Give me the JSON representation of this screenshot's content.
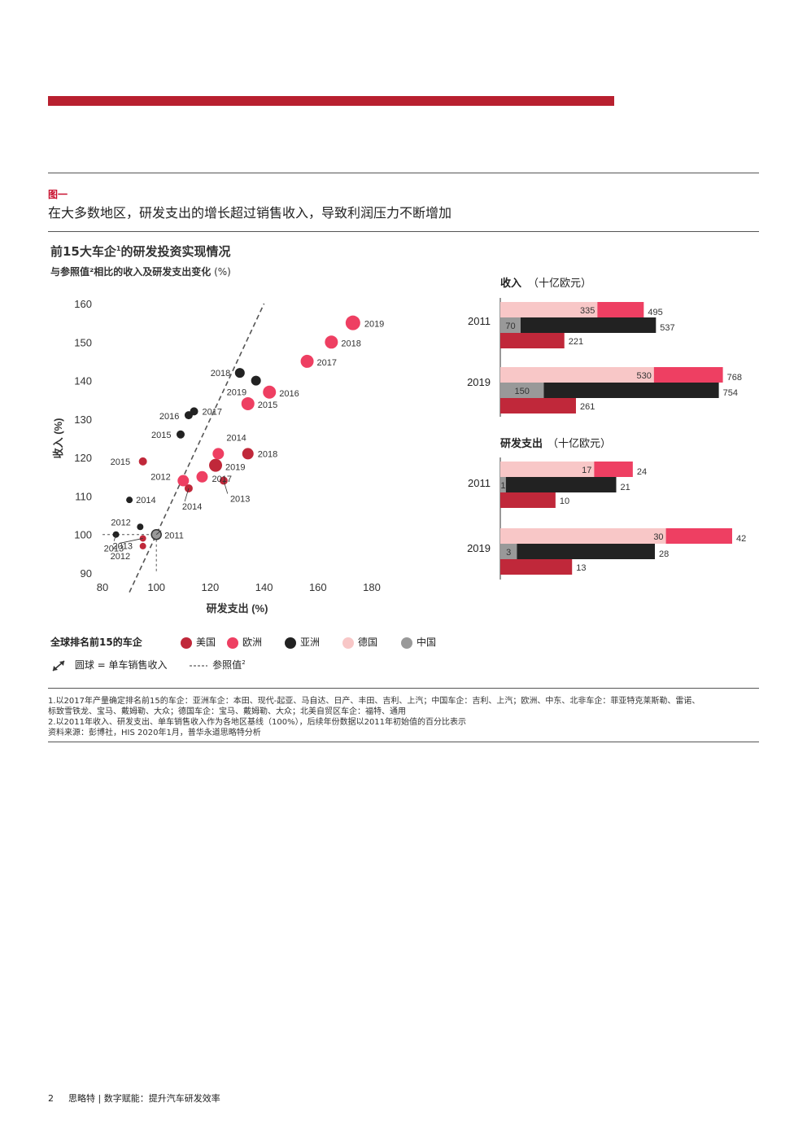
{
  "figure_label": "图一",
  "figure_title": "在大多数地区，研发支出的增长超过销售收入，导致利润压力不断增加",
  "chart_title_main": "前15大车企",
  "chart_title_sup": "1",
  "chart_title_rest": "的研发投资实现情况",
  "chart_subtitle_main": "与参照值²相比的收入及研发支出变化",
  "chart_subtitle_unit": " (%)",
  "colors": {
    "us": "#c0283a",
    "europe": "#ee3f62",
    "asia": "#222222",
    "germany": "#f8c7c7",
    "china": "#999999",
    "brand": "#b8202f"
  },
  "chart_data": [
    {
      "type": "scatter",
      "xlabel": "研发支出 (%)",
      "ylabel": "收入 (%)",
      "xlim": [
        80,
        180
      ],
      "ylim": [
        90,
        160
      ],
      "xticks": [
        "80",
        "100",
        "120",
        "140",
        "160",
        "180"
      ],
      "yticks": [
        "90",
        "100",
        "110",
        "120",
        "130",
        "140",
        "150",
        "160"
      ],
      "reference_line": [
        [
          90,
          85
        ],
        [
          140,
          160
        ]
      ],
      "reference_point": [
        100,
        100
      ],
      "series": [
        {
          "group": "us",
          "points": [
            {
              "x": 95,
              "y": 119,
              "label": "2015",
              "r": 5
            },
            {
              "x": 112,
              "y": 112,
              "label": "2014",
              "r": 5
            },
            {
              "x": 125,
              "y": 114,
              "label": "2013",
              "r": 5
            },
            {
              "x": 95,
              "y": 99,
              "label": "2013",
              "r": 4
            },
            {
              "x": 95,
              "y": 97,
              "label": "2012",
              "r": 4
            },
            {
              "x": 117,
              "y": 115,
              "label": "2017",
              "r": 6
            },
            {
              "x": 134,
              "y": 121,
              "label": "2018",
              "r": 7
            },
            {
              "x": 122,
              "y": 118,
              "label": "2019",
              "r": 8
            }
          ]
        },
        {
          "group": "europe",
          "points": [
            {
              "x": 110,
              "y": 114,
              "label": "2012",
              "r": 7
            },
            {
              "x": 117,
              "y": 115,
              "label": "",
              "r": 7
            },
            {
              "x": 123,
              "y": 121,
              "label": "2014",
              "r": 7
            },
            {
              "x": 134,
              "y": 134,
              "label": "2015",
              "r": 8
            },
            {
              "x": 142,
              "y": 137,
              "label": "2016",
              "r": 8
            },
            {
              "x": 156,
              "y": 145,
              "label": "2017",
              "r": 8
            },
            {
              "x": 165,
              "y": 150,
              "label": "2018",
              "r": 8
            },
            {
              "x": 173,
              "y": 155,
              "label": "2019",
              "r": 9
            }
          ]
        },
        {
          "group": "asia",
          "points": [
            {
              "x": 85,
              "y": 100,
              "label": "2013",
              "r": 4
            },
            {
              "x": 94,
              "y": 102,
              "label": "2012",
              "r": 4
            },
            {
              "x": 90,
              "y": 109,
              "label": "2014",
              "r": 4
            },
            {
              "x": 109,
              "y": 126,
              "label": "2015",
              "r": 5
            },
            {
              "x": 112,
              "y": 131,
              "label": "2016",
              "r": 5
            },
            {
              "x": 114,
              "y": 132,
              "label": "2017",
              "r": 5
            },
            {
              "x": 131,
              "y": 142,
              "label": "2018",
              "r": 6
            },
            {
              "x": 137,
              "y": 140,
              "label": "2019",
              "r": 6
            }
          ]
        },
        {
          "group": "china",
          "points": [
            {
              "x": 100,
              "y": 100,
              "label": "2011",
              "r": 6
            }
          ]
        }
      ]
    },
    {
      "type": "bar",
      "title": "收入",
      "unit": "（十亿欧元）",
      "xlim": [
        0,
        800
      ],
      "categories": [
        "2011",
        "2019"
      ],
      "series": [
        {
          "group": "germany",
          "values": [
            335,
            530
          ]
        },
        {
          "group": "europe",
          "values": [
            495,
            768
          ]
        },
        {
          "group": "china",
          "values": [
            70,
            150
          ]
        },
        {
          "group": "asia",
          "values": [
            537,
            754
          ]
        },
        {
          "group": "us",
          "values": [
            221,
            261
          ]
        }
      ]
    },
    {
      "type": "bar",
      "title": "研发支出",
      "unit": "（十亿欧元）",
      "xlim": [
        0,
        42
      ],
      "categories": [
        "2011",
        "2019"
      ],
      "series": [
        {
          "group": "germany",
          "values": [
            17,
            30
          ]
        },
        {
          "group": "europe",
          "values": [
            24,
            42
          ]
        },
        {
          "group": "china",
          "values": [
            1,
            3
          ]
        },
        {
          "group": "asia",
          "values": [
            21,
            28
          ]
        },
        {
          "group": "us",
          "values": [
            10,
            13
          ]
        }
      ]
    }
  ],
  "legend": {
    "title": "全球排名前15的车企",
    "items": [
      {
        "label": "美国",
        "group": "us"
      },
      {
        "label": "欧洲",
        "group": "europe"
      },
      {
        "label": "亚洲",
        "group": "asia"
      },
      {
        "label": "德国",
        "group": "germany"
      },
      {
        "label": "中国",
        "group": "china"
      }
    ],
    "circle_note": "圆球 = 单车销售收入",
    "ref_note": "参照值",
    "ref_sup": "2"
  },
  "footnotes": [
    "1.以2017年产量确定排名前15的车企：亚洲车企：本田、现代-起亚、马自达、日产、丰田、吉利、上汽；中国车企：吉利、上汽；欧洲、中东、北非车企：菲亚特克莱斯勒、雷诺、",
    "标致雪铁龙、宝马、戴姆勒、大众；德国车企：宝马、戴姆勒、大众；北美自贸区车企：福特、通用",
    "2.以2011年收入、研发支出、单车销售收入作为各地区基线（100%），后续年份数据以2011年初始值的百分比表示",
    "资料来源：彭博社，HIS 2020年1月，普华永道思略特分析"
  ],
  "footer": {
    "page_number": "2",
    "text": "思略特 | 数字赋能：提升汽车研发效率"
  }
}
